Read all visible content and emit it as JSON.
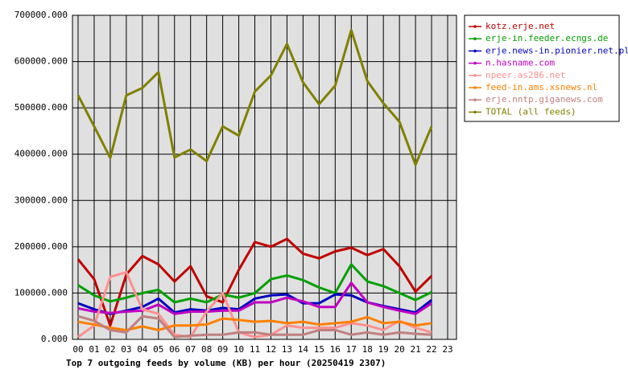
{
  "chart_data": {
    "type": "line",
    "title": "Top 7 outgoing feeds by volume (KB) per hour (20250419 2307)",
    "categories": [
      "00",
      "01",
      "02",
      "03",
      "04",
      "05",
      "06",
      "07",
      "08",
      "09",
      "10",
      "11",
      "12",
      "13",
      "14",
      "15",
      "16",
      "17",
      "18",
      "19",
      "20",
      "21",
      "22",
      "23"
    ],
    "ylim": [
      0,
      700000
    ],
    "yticks": [
      {
        "value": 0,
        "label": "0.000"
      },
      {
        "value": 100000,
        "label": "100000.000"
      },
      {
        "value": 200000,
        "label": "200000.000"
      },
      {
        "value": 300000,
        "label": "300000.000"
      },
      {
        "value": 400000,
        "label": "400000.000"
      },
      {
        "value": 500000,
        "label": "500000.000"
      },
      {
        "value": 600000,
        "label": "600000.000"
      },
      {
        "value": 700000,
        "label": "700000.000"
      }
    ],
    "grid": true,
    "legend": "right",
    "series": [
      {
        "name": "kotz.erje.net",
        "color": "#c00000",
        "values": [
          173000,
          130000,
          30000,
          140000,
          180000,
          162000,
          125000,
          158000,
          93000,
          80000,
          150000,
          210000,
          200000,
          217000,
          185000,
          175000,
          190000,
          198000,
          182000,
          195000,
          158000,
          103000,
          137000,
          null
        ]
      },
      {
        "name": "erje-in.feeder.ecngs.de",
        "color": "#00a000",
        "values": [
          117000,
          95000,
          82000,
          90000,
          100000,
          107000,
          80000,
          88000,
          80000,
          97000,
          90000,
          100000,
          130000,
          138000,
          128000,
          112000,
          100000,
          162000,
          125000,
          115000,
          100000,
          85000,
          102000,
          null
        ]
      },
      {
        "name": "erje.news-in.pionier.net.pl",
        "color": "#0000c0",
        "values": [
          78000,
          65000,
          55000,
          62000,
          70000,
          88000,
          58000,
          65000,
          62000,
          68000,
          65000,
          88000,
          95000,
          97000,
          78000,
          78000,
          97000,
          95000,
          80000,
          72000,
          65000,
          58000,
          85000,
          null
        ]
      },
      {
        "name": "n.hasname.com",
        "color": "#c000c0",
        "values": [
          67000,
          60000,
          57000,
          60000,
          62000,
          75000,
          55000,
          60000,
          60000,
          62000,
          62000,
          80000,
          80000,
          90000,
          82000,
          70000,
          70000,
          122000,
          80000,
          70000,
          62000,
          55000,
          78000,
          null
        ]
      },
      {
        "name": "npeer.as286.net",
        "color": "#ff9090",
        "values": [
          5000,
          30000,
          135000,
          145000,
          65000,
          55000,
          10000,
          5000,
          60000,
          100000,
          15000,
          5000,
          10000,
          30000,
          25000,
          25000,
          25000,
          35000,
          30000,
          20000,
          40000,
          25000,
          15000,
          null
        ]
      },
      {
        "name": "feed-in.ams.xsnews.nl",
        "color": "#ff8000",
        "values": [
          38000,
          32000,
          25000,
          20000,
          28000,
          20000,
          30000,
          30000,
          32000,
          45000,
          42000,
          38000,
          40000,
          35000,
          38000,
          32000,
          35000,
          38000,
          48000,
          35000,
          38000,
          30000,
          35000,
          null
        ]
      },
      {
        "name": "erje.nntp.giganews.com",
        "color": "#c08080",
        "values": [
          50000,
          40000,
          20000,
          15000,
          50000,
          45000,
          5000,
          8000,
          10000,
          10000,
          15000,
          15000,
          10000,
          10000,
          10000,
          20000,
          20000,
          10000,
          15000,
          10000,
          15000,
          12000,
          10000,
          null
        ]
      },
      {
        "name": "TOTAL (all feeds)",
        "color": "#808000",
        "values": [
          527000,
          460000,
          392000,
          527000,
          543000,
          577000,
          393000,
          410000,
          385000,
          460000,
          440000,
          535000,
          570000,
          638000,
          555000,
          508000,
          548000,
          668000,
          558000,
          510000,
          470000,
          377000,
          460000,
          null
        ]
      }
    ]
  }
}
